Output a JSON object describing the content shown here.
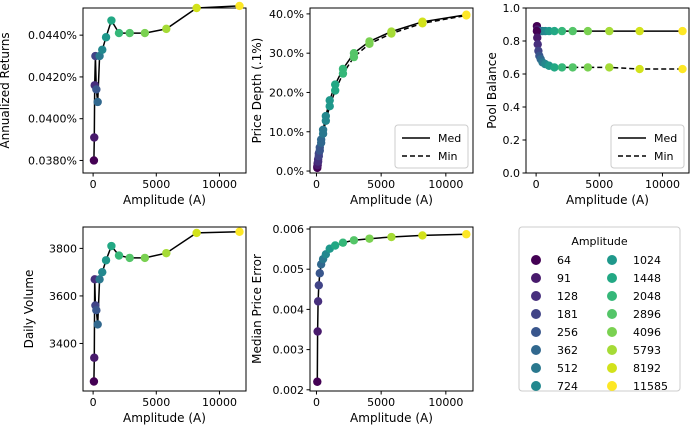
{
  "amplitude_levels": [
    64,
    91,
    128,
    181,
    256,
    362,
    512,
    724,
    1024,
    1448,
    2048,
    2896,
    4096,
    5793,
    8192,
    11585
  ],
  "level_colors": [
    "#440154",
    "#481a6c",
    "#472f7d",
    "#414487",
    "#39568c",
    "#31688e",
    "#2a788e",
    "#23888e",
    "#1f988b",
    "#22a884",
    "#35b779",
    "#54c568",
    "#7ad151",
    "#a5db36",
    "#d2e21b",
    "#fde725"
  ],
  "chart_data": [
    {
      "id": "returns",
      "type": "scatter",
      "xlabel": "Amplitude (A)",
      "ylabel": "Annualized Returns",
      "xlim": [
        -800,
        12100
      ],
      "ylim": [
        0.000374,
        0.000453
      ],
      "xticks": [
        0,
        5000,
        10000
      ],
      "xticklabels": [
        "0",
        "5000",
        "10000"
      ],
      "yticks": [
        0.00038,
        0.0004,
        0.00042,
        0.00044
      ],
      "yticklabels": [
        "0.0380%",
        "0.0400%",
        "0.0420%",
        "0.0440%"
      ],
      "series": [
        {
          "style": "solid",
          "values": [
            0.00038,
            0.000391,
            0.000416,
            0.00043,
            0.000414,
            0.000408,
            0.00043,
            0.000433,
            0.000439,
            0.000447,
            0.000441,
            0.000441,
            0.000441,
            0.000443,
            0.000453,
            0.000454
          ]
        }
      ]
    },
    {
      "id": "price_depth",
      "type": "scatter",
      "xlabel": "Amplitude (A)",
      "ylabel": "Price Depth (.1%)",
      "xlim": [
        -500,
        12100
      ],
      "ylim": [
        -0.005,
        0.415
      ],
      "xticks": [
        0,
        5000,
        10000
      ],
      "xticklabels": [
        "0",
        "5000",
        "10000"
      ],
      "yticks": [
        0,
        0.1,
        0.2,
        0.3,
        0.4
      ],
      "yticklabels": [
        "0.0%",
        "10.0%",
        "20.0%",
        "30.0%",
        "40.0%"
      ],
      "legend": {
        "position": "lower-right",
        "entries": [
          {
            "label": "Med",
            "style": "solid"
          },
          {
            "label": "Min",
            "style": "dashed"
          }
        ]
      },
      "series": [
        {
          "name": "Med",
          "style": "solid",
          "values": [
            0.012,
            0.02,
            0.03,
            0.045,
            0.06,
            0.08,
            0.105,
            0.14,
            0.18,
            0.22,
            0.26,
            0.3,
            0.33,
            0.355,
            0.38,
            0.398
          ]
        },
        {
          "name": "Min",
          "style": "dashed",
          "values": [
            0.008,
            0.015,
            0.024,
            0.038,
            0.052,
            0.072,
            0.095,
            0.128,
            0.165,
            0.205,
            0.248,
            0.29,
            0.324,
            0.35,
            0.376,
            0.396
          ]
        }
      ]
    },
    {
      "id": "pool_balance",
      "type": "scatter",
      "xlabel": "Amplitude (A)",
      "ylabel": "Pool Balance",
      "xlim": [
        -800,
        12100
      ],
      "ylim": [
        0,
        1.0
      ],
      "xticks": [
        0,
        5000,
        10000
      ],
      "xticklabels": [
        "0",
        "5000",
        "10000"
      ],
      "yticks": [
        0,
        0.2,
        0.4,
        0.6,
        0.8,
        1.0
      ],
      "yticklabels": [
        "0.0",
        "0.2",
        "0.4",
        "0.6",
        "0.8",
        "1.0"
      ],
      "legend": {
        "position": "lower-right",
        "entries": [
          {
            "label": "Med",
            "style": "solid"
          },
          {
            "label": "Min",
            "style": "dashed"
          }
        ]
      },
      "series": [
        {
          "name": "Med",
          "style": "solid",
          "values": [
            0.89,
            0.87,
            0.86,
            0.86,
            0.86,
            0.86,
            0.86,
            0.86,
            0.86,
            0.86,
            0.86,
            0.86,
            0.86,
            0.86,
            0.86,
            0.86
          ]
        },
        {
          "name": "Min",
          "style": "dashed",
          "values": [
            0.86,
            0.82,
            0.78,
            0.74,
            0.71,
            0.69,
            0.67,
            0.66,
            0.65,
            0.64,
            0.64,
            0.64,
            0.64,
            0.64,
            0.63,
            0.63
          ]
        }
      ]
    },
    {
      "id": "daily_volume",
      "type": "scatter",
      "xlabel": "Amplitude (A)",
      "ylabel": "Daily Volume",
      "xlim": [
        -800,
        12100
      ],
      "ylim": [
        3200,
        3890
      ],
      "xticks": [
        0,
        5000,
        10000
      ],
      "xticklabels": [
        "0",
        "5000",
        "10000"
      ],
      "yticks": [
        3400,
        3600,
        3800
      ],
      "yticklabels": [
        "3400",
        "3600",
        "3800"
      ],
      "series": [
        {
          "style": "solid",
          "values": [
            3240,
            3340,
            3670,
            3560,
            3540,
            3480,
            3670,
            3700,
            3750,
            3810,
            3770,
            3760,
            3760,
            3780,
            3865,
            3870
          ]
        }
      ]
    },
    {
      "id": "median_price_error",
      "type": "scatter",
      "xlabel": "Amplitude (A)",
      "ylabel": "Median Price Error",
      "xlim": [
        -500,
        12100
      ],
      "ylim": [
        0.00197,
        0.00605
      ],
      "xticks": [
        0,
        5000,
        10000
      ],
      "xticklabels": [
        "0",
        "5000",
        "10000"
      ],
      "yticks": [
        0.002,
        0.003,
        0.004,
        0.005,
        0.006
      ],
      "yticklabels": [
        "0.002",
        "0.003",
        "0.004",
        "0.005",
        "0.006"
      ],
      "series": [
        {
          "style": "solid",
          "values": [
            0.0022,
            0.00345,
            0.0042,
            0.0046,
            0.0049,
            0.00512,
            0.00525,
            0.00537,
            0.00551,
            0.00559,
            0.00566,
            0.00572,
            0.00576,
            0.0058,
            0.00584,
            0.00587
          ]
        }
      ]
    }
  ],
  "legend": {
    "title": "Amplitude",
    "labels": [
      "64",
      "91",
      "128",
      "181",
      "256",
      "362",
      "512",
      "724",
      "1024",
      "1448",
      "2048",
      "2896",
      "4096",
      "5793",
      "8192",
      "11585"
    ]
  }
}
